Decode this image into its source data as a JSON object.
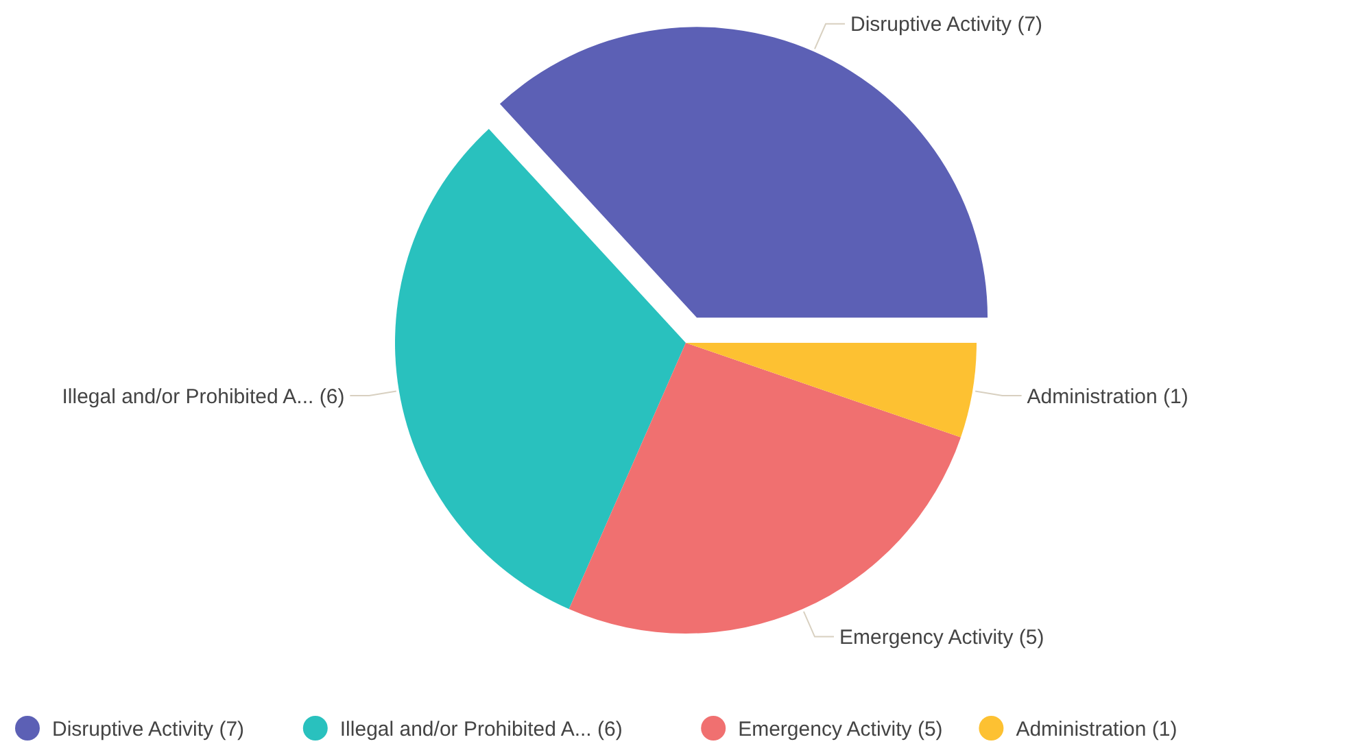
{
  "chart_data": {
    "type": "pie",
    "categories": [
      "Disruptive Activity (7)",
      "Illegal and/or Prohibited A... (6)",
      "Emergency Activity (5)",
      "Administration (1)"
    ],
    "values": [
      7,
      6,
      5,
      1
    ],
    "colors": [
      "#5c60b5",
      "#29c1be",
      "#f07070",
      "#fdc132"
    ],
    "legend": "bottom"
  }
}
